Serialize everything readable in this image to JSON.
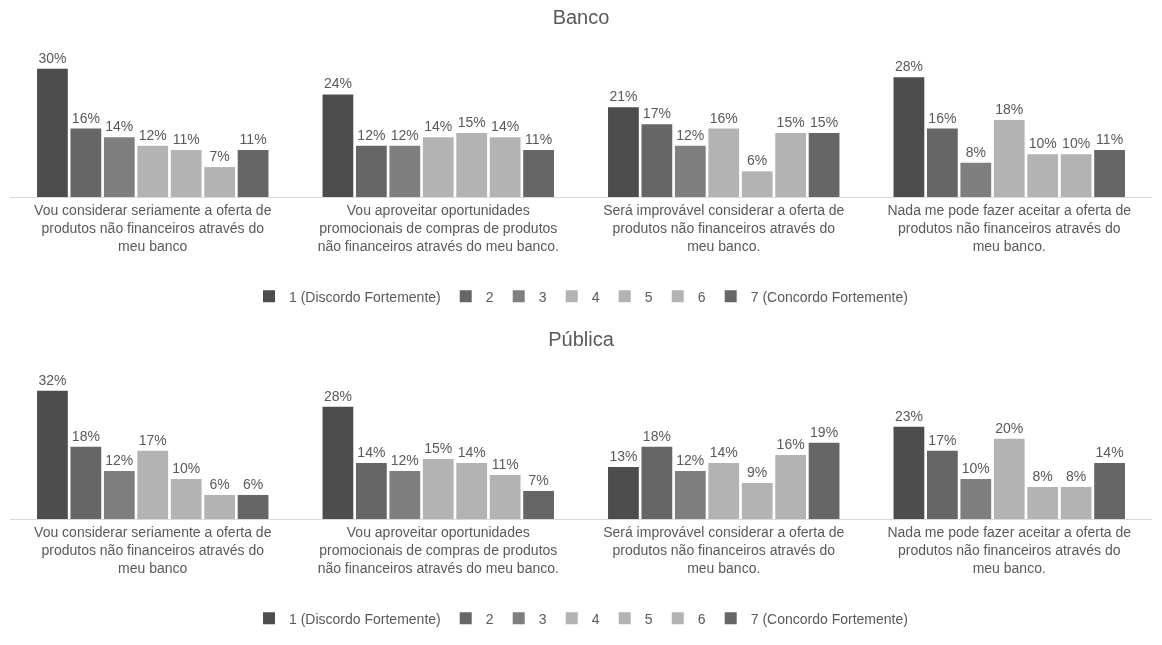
{
  "chart_data": [
    {
      "type": "bar",
      "title": "Banco",
      "legend": "bottom",
      "categories": [
        "Vou considerar seriamente a oferta de produtos não financeiros através do meu banco",
        "Vou aproveitar oportunidades promocionais de compras de produtos não financeiros através do meu banco.",
        "Será improvável considerar a oferta de produtos não financeiros através do meu banco.",
        "Nada me pode fazer aceitar a oferta de produtos não financeiros através do meu banco."
      ],
      "series": [
        {
          "name": "1 (Discordo Fortemente)",
          "color": "#4d4d4d",
          "values": [
            30,
            24,
            21,
            28
          ],
          "value_labels": [
            "30%",
            "24%",
            "21%",
            "28%"
          ]
        },
        {
          "name": "2",
          "color": "#666666",
          "values": [
            16,
            12,
            17,
            16
          ],
          "value_labels": [
            "16%",
            "12%",
            "17%",
            "16%"
          ]
        },
        {
          "name": "3",
          "color": "#7f7f7f",
          "values": [
            14,
            12,
            12,
            8
          ],
          "value_labels": [
            "14%",
            "12%",
            "12%",
            "8%"
          ]
        },
        {
          "name": "4",
          "color": "#b3b3b3",
          "values": [
            12,
            14,
            16,
            18
          ],
          "value_labels": [
            "12%",
            "14%",
            "16%",
            "18%"
          ]
        },
        {
          "name": "5",
          "color": "#b3b3b3",
          "values": [
            11,
            15,
            6,
            10
          ],
          "value_labels": [
            "11%",
            "15%",
            "6%",
            "10%"
          ]
        },
        {
          "name": "6",
          "color": "#b3b3b3",
          "values": [
            7,
            14,
            15,
            10
          ],
          "value_labels": [
            "7%",
            "14%",
            "15%",
            "10%"
          ]
        },
        {
          "name": "7 (Concordo Fortemente)",
          "color": "#666666",
          "values": [
            11,
            11,
            15,
            11
          ],
          "value_labels": [
            "11%",
            "11%",
            "15%",
            "11%"
          ]
        }
      ]
    },
    {
      "type": "bar",
      "title": "Pública",
      "legend": "bottom",
      "categories": [
        "Vou considerar seriamente a oferta de produtos não financeiros através do meu banco",
        "Vou aproveitar oportunidades promocionais de compras de produtos não financeiros através do meu banco.",
        "Será improvável considerar a oferta de produtos não financeiros através do meu banco.",
        "Nada me pode fazer aceitar a oferta de produtos não financeiros através do meu banco."
      ],
      "series": [
        {
          "name": "1 (Discordo Fortemente)",
          "color": "#4d4d4d",
          "values": [
            32,
            28,
            13,
            23
          ],
          "value_labels": [
            "32%",
            "28%",
            "13%",
            "23%"
          ]
        },
        {
          "name": "2",
          "color": "#666666",
          "values": [
            18,
            14,
            18,
            17
          ],
          "value_labels": [
            "18%",
            "14%",
            "18%",
            "17%"
          ]
        },
        {
          "name": "3",
          "color": "#7f7f7f",
          "values": [
            12,
            12,
            12,
            10
          ],
          "value_labels": [
            "12%",
            "12%",
            "12%",
            "10%"
          ]
        },
        {
          "name": "4",
          "color": "#b3b3b3",
          "values": [
            17,
            15,
            14,
            20
          ],
          "value_labels": [
            "17%",
            "15%",
            "14%",
            "20%"
          ]
        },
        {
          "name": "5",
          "color": "#b3b3b3",
          "values": [
            10,
            14,
            9,
            8
          ],
          "value_labels": [
            "10%",
            "14%",
            "9%",
            "8%"
          ]
        },
        {
          "name": "6",
          "color": "#b3b3b3",
          "values": [
            6,
            11,
            16,
            8
          ],
          "value_labels": [
            "6%",
            "11%",
            "16%",
            "8%"
          ]
        },
        {
          "name": "7 (Concordo Fortemente)",
          "color": "#666666",
          "values": [
            6,
            7,
            19,
            14
          ],
          "value_labels": [
            "6%",
            "7%",
            "19%",
            "14%"
          ]
        }
      ]
    }
  ]
}
